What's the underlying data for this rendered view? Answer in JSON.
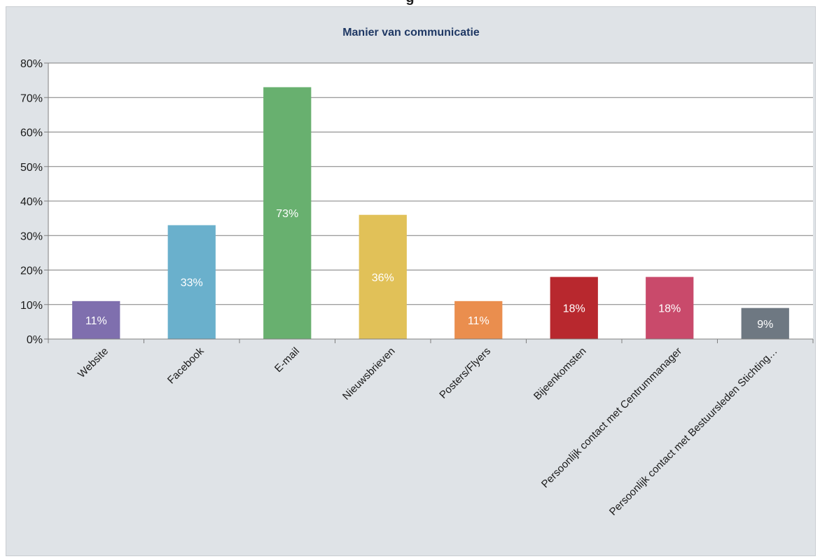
{
  "header_fragment": "g",
  "chart_data": {
    "type": "bar",
    "title": "Manier van communicatie",
    "xlabel": "",
    "ylabel": "",
    "ylim": [
      0,
      80
    ],
    "yticks": [
      "0%",
      "10%",
      "20%",
      "30%",
      "40%",
      "50%",
      "60%",
      "70%",
      "80%"
    ],
    "grid": true,
    "legend": "none",
    "categories": [
      "Website",
      "Facebook",
      "E-mail",
      "Nieuwsbrieven",
      "Posters/Flyers",
      "Bijeenkomsten",
      "Persoonlijk contact met Centrummanager",
      "Persoonlijk contact met Bestuursleden Stichting…"
    ],
    "values": [
      11,
      33,
      73,
      36,
      11,
      18,
      18,
      9
    ],
    "data_labels": [
      "11%",
      "33%",
      "73%",
      "36%",
      "11%",
      "18%",
      "18%",
      "9%"
    ],
    "colors": [
      "#7f6fae",
      "#6ab0cc",
      "#68b06f",
      "#e1c158",
      "#ea8e4e",
      "#b8282e",
      "#c94a6b",
      "#6e7882"
    ],
    "background": "#dfe3e7",
    "plot_background": "#ffffff"
  }
}
